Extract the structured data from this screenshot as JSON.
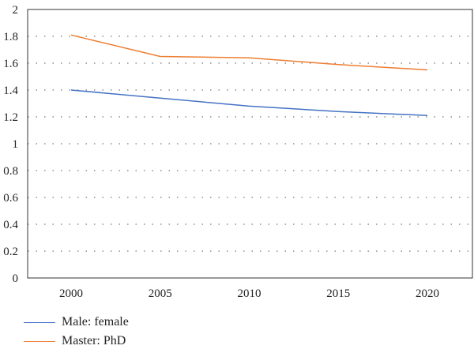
{
  "chart_data": {
    "type": "line",
    "title": "",
    "xlabel": "",
    "ylabel": "",
    "x": [
      2000,
      2005,
      2010,
      2015,
      2020
    ],
    "ylim": [
      0,
      2
    ],
    "yticks": [
      "0",
      "0.2",
      "0.4",
      "0.6",
      "0.8",
      "1",
      "1.2",
      "1.4",
      "1.6",
      "1.8",
      "2"
    ],
    "xticks": [
      "2000",
      "2005",
      "2010",
      "2015",
      "2020"
    ],
    "grid": "horizontal dotted",
    "legend_position": "bottom-left",
    "series": [
      {
        "name": "Male: female",
        "color": "#4472c4",
        "values": [
          1.4,
          1.34,
          1.28,
          1.24,
          1.21
        ]
      },
      {
        "name": "Master: PhD",
        "color": "#ed7d31",
        "values": [
          1.81,
          1.65,
          1.64,
          1.59,
          1.55
        ]
      }
    ]
  }
}
